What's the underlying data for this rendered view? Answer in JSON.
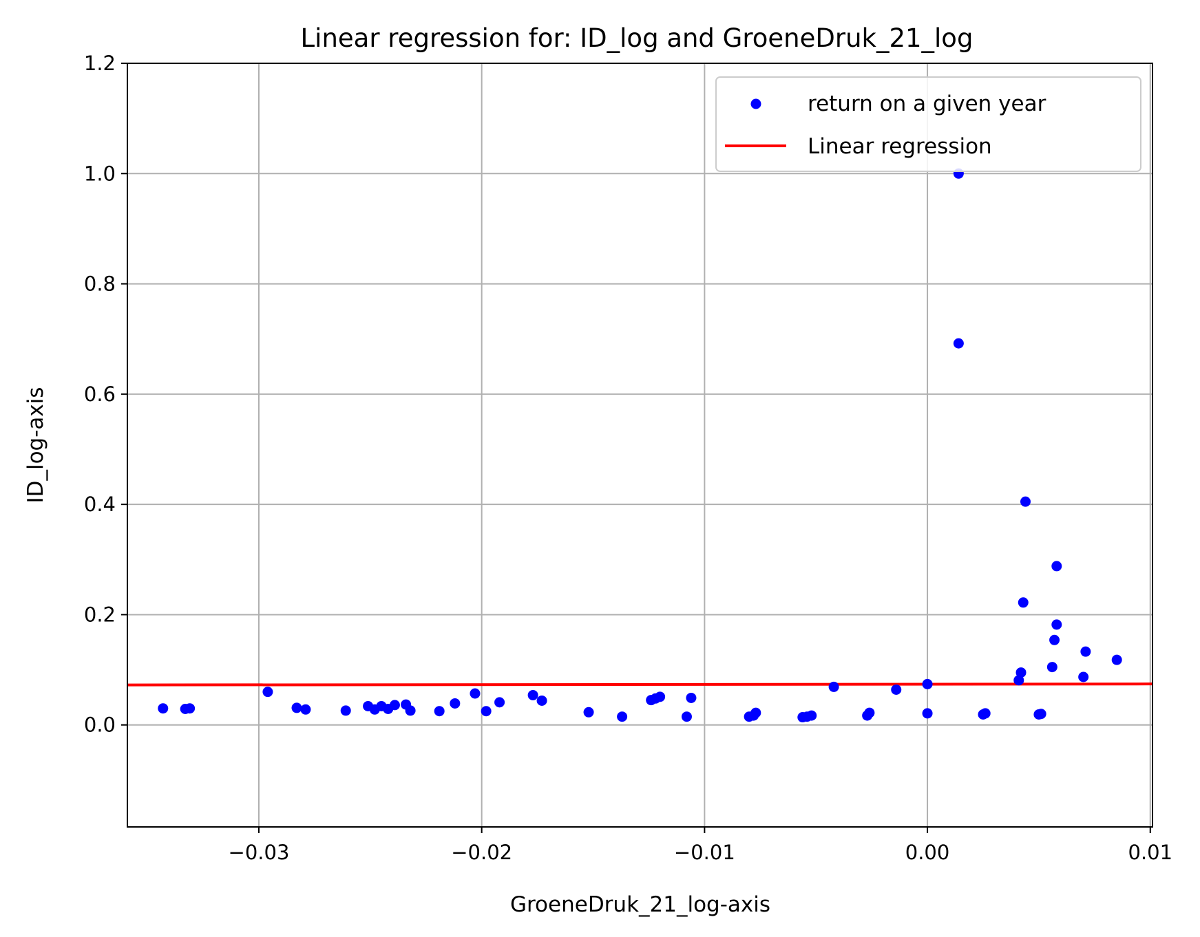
{
  "chart_data": {
    "type": "scatter",
    "title": "Linear regression for: ID_log and GroeneDruk_21_log",
    "xlabel": "GroeneDruk_21_log-axis",
    "ylabel": "ID_log-axis",
    "xlim": [
      -0.0359,
      0.0101
    ],
    "ylim": [
      -0.185,
      1.2
    ],
    "xticks": [
      -0.03,
      -0.02,
      -0.01,
      0.0,
      0.01
    ],
    "xtick_labels": [
      "−0.03",
      "−0.02",
      "−0.01",
      "0.00",
      "0.01"
    ],
    "yticks": [
      0.0,
      0.2,
      0.4,
      0.6,
      0.8,
      1.0,
      1.2
    ],
    "ytick_labels": [
      "0.0",
      "0.2",
      "0.4",
      "0.6",
      "0.8",
      "1.0",
      "1.2"
    ],
    "grid": true,
    "legend": {
      "placement": "top-right",
      "entries": [
        "return on a given year",
        "Linear regression"
      ]
    },
    "series": [
      {
        "name": "return on a given year",
        "kind": "scatter",
        "color": "#0000ff",
        "points": [
          [
            -0.0343,
            0.03
          ],
          [
            -0.0333,
            0.029
          ],
          [
            -0.0331,
            0.03
          ],
          [
            -0.0296,
            0.06
          ],
          [
            -0.0283,
            0.031
          ],
          [
            -0.0279,
            0.028
          ],
          [
            -0.0261,
            0.026
          ],
          [
            -0.0251,
            0.034
          ],
          [
            -0.0248,
            0.028
          ],
          [
            -0.0245,
            0.034
          ],
          [
            -0.0242,
            0.029
          ],
          [
            -0.0239,
            0.036
          ],
          [
            -0.0234,
            0.037
          ],
          [
            -0.0232,
            0.026
          ],
          [
            -0.0219,
            0.025
          ],
          [
            -0.0212,
            0.039
          ],
          [
            -0.0203,
            0.057
          ],
          [
            -0.0198,
            0.025
          ],
          [
            -0.0192,
            0.041
          ],
          [
            -0.0177,
            0.054
          ],
          [
            -0.0173,
            0.044
          ],
          [
            -0.0152,
            0.023
          ],
          [
            -0.0137,
            0.015
          ],
          [
            -0.0124,
            0.045
          ],
          [
            -0.0122,
            0.048
          ],
          [
            -0.012,
            0.051
          ],
          [
            -0.0108,
            0.015
          ],
          [
            -0.0106,
            0.049
          ],
          [
            -0.008,
            0.015
          ],
          [
            -0.0078,
            0.017
          ],
          [
            -0.0077,
            0.022
          ],
          [
            -0.0056,
            0.014
          ],
          [
            -0.0054,
            0.015
          ],
          [
            -0.0052,
            0.017
          ],
          [
            -0.0042,
            0.069
          ],
          [
            -0.0027,
            0.017
          ],
          [
            -0.0026,
            0.022
          ],
          [
            -0.0014,
            0.064
          ],
          [
            0.0,
            0.074
          ],
          [
            0.0,
            0.021
          ],
          [
            0.0014,
            1.0
          ],
          [
            0.0014,
            0.692
          ],
          [
            0.0025,
            0.019
          ],
          [
            0.0026,
            0.021
          ],
          [
            0.0041,
            0.081
          ],
          [
            0.0042,
            0.095
          ],
          [
            0.0043,
            0.222
          ],
          [
            0.0044,
            0.405
          ],
          [
            0.005,
            0.019
          ],
          [
            0.0051,
            0.02
          ],
          [
            0.0056,
            0.105
          ],
          [
            0.0057,
            0.154
          ],
          [
            0.0058,
            0.182
          ],
          [
            0.0058,
            0.288
          ],
          [
            0.007,
            0.087
          ],
          [
            0.0071,
            0.133
          ],
          [
            0.0085,
            0.118
          ]
        ]
      },
      {
        "name": "Linear regression",
        "kind": "line",
        "color": "#ff0000",
        "points": [
          [
            -0.0359,
            0.0725
          ],
          [
            0.0101,
            0.0743
          ]
        ]
      }
    ]
  }
}
